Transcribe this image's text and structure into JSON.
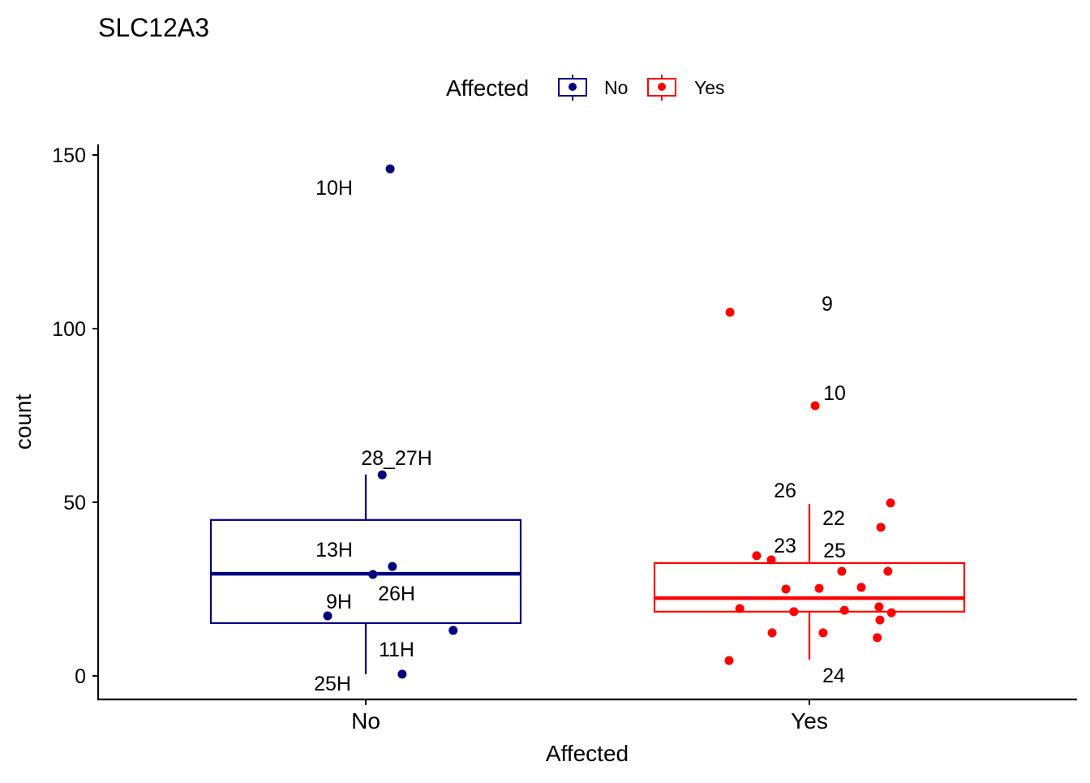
{
  "chart_data": {
    "type": "box",
    "title": "SLC12A3",
    "xlabel": "Affected",
    "ylabel": "count",
    "ylim": [
      -6.5,
      151
    ],
    "yticks": [
      0,
      50,
      100,
      150
    ],
    "categories": [
      "No",
      "Yes"
    ],
    "legend": {
      "title": "Affected",
      "placement": "top",
      "entries": [
        "No",
        "Yes"
      ]
    },
    "colors": {
      "No": "#000080",
      "Yes": "#ff0000"
    },
    "boxes": [
      {
        "group": "No",
        "whisker_low": 0.5,
        "q1": 15.2,
        "median": 29.4,
        "q3": 44.9,
        "whisker_high": 58
      },
      {
        "group": "Yes",
        "whisker_low": 4.7,
        "q1": 18.5,
        "median": 22.4,
        "q3": 32.5,
        "whisker_high": 49.5
      }
    ],
    "points": [
      {
        "group": "No",
        "x": 1.055,
        "y": 146,
        "label": "10H"
      },
      {
        "group": "No",
        "x": 1.037,
        "y": 57.9,
        "label": "28_27H"
      },
      {
        "group": "No",
        "x": 1.06,
        "y": 31.5,
        "label": "13H"
      },
      {
        "group": "No",
        "x": 1.016,
        "y": 29.2,
        "label": "26H"
      },
      {
        "group": "No",
        "x": 0.914,
        "y": 17.3,
        "label": "9H"
      },
      {
        "group": "No",
        "x": 1.197,
        "y": 13.1,
        "label": "11H"
      },
      {
        "group": "No",
        "x": 1.082,
        "y": 0.5,
        "label": "25H"
      },
      {
        "group": "Yes",
        "x": 1.821,
        "y": 104.7
      },
      {
        "group": "Yes",
        "x": 2.013,
        "y": 77.8
      },
      {
        "group": "Yes",
        "x": 2.183,
        "y": 49.8
      },
      {
        "group": "Yes",
        "x": 2.161,
        "y": 42.8
      },
      {
        "group": "Yes",
        "x": 1.881,
        "y": 34.6
      },
      {
        "group": "Yes",
        "x": 1.914,
        "y": 33.4
      },
      {
        "group": "Yes",
        "x": 2.073,
        "y": 30.1
      },
      {
        "group": "Yes",
        "x": 2.177,
        "y": 30.1
      },
      {
        "group": "Yes",
        "x": 1.947,
        "y": 25.0
      },
      {
        "group": "Yes",
        "x": 2.022,
        "y": 25.2
      },
      {
        "group": "Yes",
        "x": 2.117,
        "y": 25.5
      },
      {
        "group": "Yes",
        "x": 1.843,
        "y": 19.4
      },
      {
        "group": "Yes",
        "x": 2.079,
        "y": 18.9
      },
      {
        "group": "Yes",
        "x": 2.157,
        "y": 19.9
      },
      {
        "group": "Yes",
        "x": 1.965,
        "y": 18.5
      },
      {
        "group": "Yes",
        "x": 2.185,
        "y": 18.2
      },
      {
        "group": "Yes",
        "x": 2.159,
        "y": 16.1
      },
      {
        "group": "Yes",
        "x": 1.916,
        "y": 12.4
      },
      {
        "group": "Yes",
        "x": 2.031,
        "y": 12.4
      },
      {
        "group": "Yes",
        "x": 2.153,
        "y": 11.0
      },
      {
        "group": "Yes",
        "x": 1.819,
        "y": 4.4
      }
    ],
    "yes_labels": [
      "9",
      "10",
      "26",
      "22",
      "23",
      "25",
      "24"
    ]
  }
}
